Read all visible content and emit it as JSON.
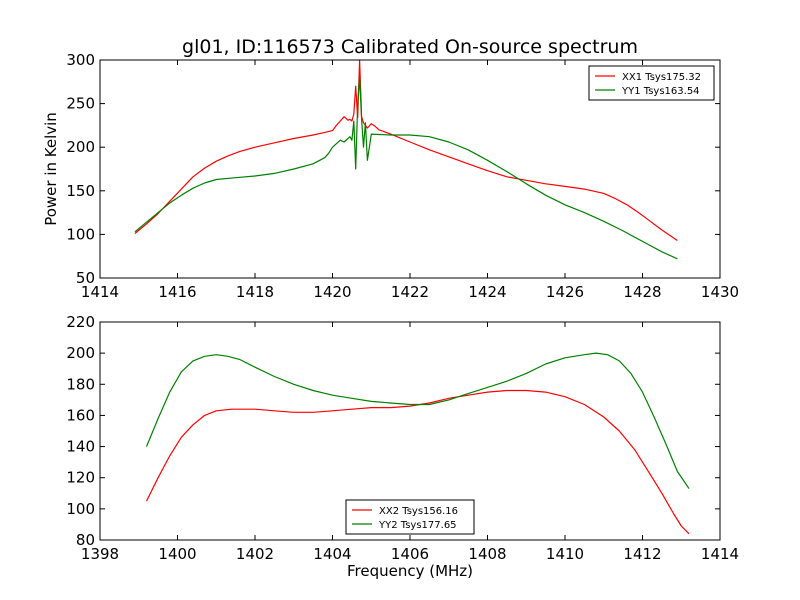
{
  "figure": {
    "title": "gl01, ID:116573 Calibrated On-source spectrum",
    "xlabel": "Frequency (MHz)",
    "ylabel": "Power in Kelvin"
  },
  "chart_data": [
    {
      "type": "line",
      "title": "gl01, ID:116573 Calibrated On-source spectrum",
      "xlabel": "",
      "ylabel": "Power in Kelvin",
      "xlim": [
        1414,
        1430
      ],
      "ylim": [
        50,
        300
      ],
      "xticks": [
        1414,
        1416,
        1418,
        1420,
        1422,
        1424,
        1426,
        1428,
        1430
      ],
      "yticks": [
        50,
        100,
        150,
        200,
        250,
        300
      ],
      "grid": false,
      "legend_position": "upper right",
      "series": [
        {
          "name": "XX1 Tsys175.32",
          "color": "#ff0000",
          "x": [
            1414.9,
            1415.2,
            1415.5,
            1415.8,
            1416.1,
            1416.4,
            1416.7,
            1417.0,
            1417.3,
            1417.6,
            1418.0,
            1418.5,
            1419.0,
            1419.5,
            1419.8,
            1420.0,
            1420.1,
            1420.2,
            1420.3,
            1420.4,
            1420.45,
            1420.5,
            1420.55,
            1420.6,
            1420.65,
            1420.7,
            1420.75,
            1420.8,
            1420.9,
            1421.0,
            1421.1,
            1421.2,
            1421.5,
            1422.0,
            1422.5,
            1423.0,
            1423.5,
            1424.0,
            1424.5,
            1425.0,
            1425.5,
            1426.0,
            1426.5,
            1427.0,
            1427.3,
            1427.6,
            1427.9,
            1428.2,
            1428.5,
            1428.9
          ],
          "y": [
            101,
            112,
            124,
            138,
            152,
            166,
            176,
            184,
            190,
            195,
            200,
            205,
            210,
            214,
            217,
            219,
            225,
            230,
            235,
            231,
            232,
            230,
            238,
            270,
            234,
            300,
            235,
            228,
            222,
            227,
            224,
            220,
            215,
            206,
            197,
            189,
            181,
            173,
            166,
            162,
            158,
            155,
            152,
            147,
            141,
            134,
            125,
            115,
            105,
            93
          ]
        },
        {
          "name": "YY1 Tsys163.54",
          "color": "#008000",
          "x": [
            1414.9,
            1415.2,
            1415.5,
            1415.8,
            1416.1,
            1416.4,
            1416.7,
            1417.0,
            1417.5,
            1418.0,
            1418.5,
            1419.0,
            1419.5,
            1419.8,
            1419.9,
            1420.0,
            1420.1,
            1420.2,
            1420.3,
            1420.4,
            1420.45,
            1420.5,
            1420.55,
            1420.6,
            1420.65,
            1420.7,
            1420.75,
            1420.8,
            1420.85,
            1420.9,
            1421.0,
            1421.5,
            1422.0,
            1422.5,
            1423.0,
            1423.5,
            1424.0,
            1424.5,
            1425.0,
            1425.5,
            1426.0,
            1426.5,
            1427.0,
            1427.5,
            1428.0,
            1428.5,
            1428.9
          ],
          "y": [
            103,
            114,
            125,
            136,
            145,
            153,
            159,
            163,
            165,
            167,
            170,
            175,
            181,
            188,
            193,
            200,
            204,
            208,
            206,
            210,
            212,
            208,
            230,
            175,
            250,
            280,
            232,
            200,
            228,
            185,
            215,
            214,
            214,
            212,
            206,
            197,
            185,
            172,
            158,
            145,
            134,
            125,
            115,
            104,
            92,
            80,
            72
          ]
        }
      ]
    },
    {
      "type": "line",
      "title": "",
      "xlabel": "Frequency (MHz)",
      "ylabel": "",
      "xlim": [
        1398,
        1414
      ],
      "ylim": [
        80,
        220
      ],
      "xticks": [
        1398,
        1400,
        1402,
        1404,
        1406,
        1408,
        1410,
        1412,
        1414
      ],
      "yticks": [
        80,
        100,
        120,
        140,
        160,
        180,
        200,
        220
      ],
      "grid": false,
      "legend_position": "lower center",
      "series": [
        {
          "name": "XX2 Tsys156.16",
          "color": "#ff0000",
          "x": [
            1399.2,
            1399.5,
            1399.8,
            1400.1,
            1400.4,
            1400.7,
            1401.0,
            1401.4,
            1402.0,
            1402.5,
            1403.0,
            1403.5,
            1404.0,
            1404.5,
            1405.0,
            1405.5,
            1406.0,
            1406.5,
            1407.0,
            1407.5,
            1408.0,
            1408.5,
            1409.0,
            1409.5,
            1410.0,
            1410.5,
            1411.0,
            1411.4,
            1411.8,
            1412.2,
            1412.5,
            1412.8,
            1413.0,
            1413.2
          ],
          "y": [
            105,
            120,
            134,
            146,
            154,
            160,
            163,
            164,
            164,
            163,
            162,
            162,
            163,
            164,
            165,
            165,
            166,
            168,
            171,
            173,
            175,
            176,
            176,
            175,
            172,
            167,
            159,
            150,
            138,
            122,
            110,
            97,
            89,
            84
          ]
        },
        {
          "name": "YY2 Tsys177.65",
          "color": "#008000",
          "x": [
            1399.2,
            1399.5,
            1399.8,
            1400.1,
            1400.4,
            1400.7,
            1401.0,
            1401.3,
            1401.6,
            1402.0,
            1402.5,
            1403.0,
            1403.5,
            1404.0,
            1404.5,
            1405.0,
            1405.5,
            1406.0,
            1406.5,
            1407.0,
            1407.5,
            1408.0,
            1408.5,
            1409.0,
            1409.5,
            1410.0,
            1410.5,
            1410.8,
            1411.1,
            1411.4,
            1411.7,
            1412.0,
            1412.3,
            1412.6,
            1412.9,
            1413.2
          ],
          "y": [
            140,
            158,
            175,
            188,
            195,
            198,
            199,
            198,
            196,
            191,
            185,
            180,
            176,
            173,
            171,
            169,
            168,
            167,
            167,
            170,
            174,
            178,
            182,
            187,
            193,
            197,
            199,
            200,
            199,
            195,
            187,
            175,
            159,
            142,
            124,
            113
          ]
        }
      ]
    }
  ]
}
